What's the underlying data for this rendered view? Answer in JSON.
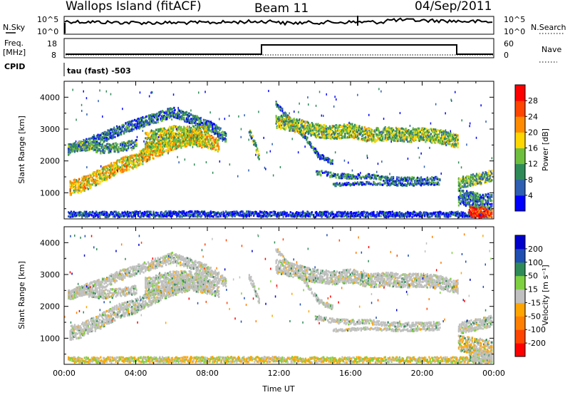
{
  "header": {
    "station": "Wallops Island (fitACF)",
    "beam": "Beam 11",
    "date": "04/Sep/2011"
  },
  "strip": {
    "nsky_label": "N.Sky",
    "nsky_tick_hi": "10^5",
    "nsky_tick_lo": "10^0",
    "nsearch_label": "N.Search",
    "freq_label": "Freq.",
    "freq_unit": "[MHz]",
    "freq_tick_hi": "18",
    "freq_tick_lo": "8",
    "nave_tick_hi": "60",
    "nave_tick_lo": "0",
    "nave_label": "Nave",
    "cpid_label": "CPID",
    "cpid_text": "tau (fast) -503"
  },
  "chart_data": [
    {
      "type": "heatmap",
      "panel": "power",
      "xlabel": "",
      "ylabel": "Slant Range [km]",
      "x_ticks": [
        "00:00",
        "04:00",
        "08:00",
        "12:00",
        "16:00",
        "20:00",
        "00:00"
      ],
      "y_ticks": [
        "1000",
        "2000",
        "3000",
        "4000"
      ],
      "xlim_hours": [
        0,
        24
      ],
      "ylim_km": [
        180,
        4500
      ],
      "colorbar": {
        "label": "Power [dB]",
        "ticks": [
          "4",
          "8",
          "12",
          "16",
          "20",
          "24",
          "28"
        ],
        "colors": [
          "#0000ff",
          "#2f5fb3",
          "#2e8b57",
          "#6fbf3f",
          "#ffd700",
          "#ff8c00",
          "#ff4500",
          "#ff0000"
        ]
      },
      "echo_bands": [
        {
          "name": "a",
          "points": [
            [
              0.3,
              1150
            ],
            [
              1,
              1260
            ],
            [
              2,
              1530
            ],
            [
              3,
              1840
            ],
            [
              4,
              2020
            ],
            [
              5,
              2320
            ],
            [
              6,
              2560
            ],
            [
              7,
              2720
            ],
            [
              8,
              2620
            ],
            [
              8.6,
              2520
            ]
          ],
          "width_km": 460,
          "level_db": 20
        },
        {
          "name": "b",
          "points": [
            [
              0.2,
              2350
            ],
            [
              1,
              2500
            ],
            [
              2,
              2700
            ],
            [
              3,
              2950
            ],
            [
              4,
              3150
            ],
            [
              5,
              3330
            ],
            [
              6,
              3530
            ],
            [
              7,
              3340
            ],
            [
              8,
              3130
            ],
            [
              9,
              2750
            ]
          ],
          "width_km": 320,
          "level_db": 10
        },
        {
          "name": "c",
          "points": [
            [
              0.2,
              2380
            ],
            [
              1,
              2470
            ],
            [
              2,
              2380
            ],
            [
              3,
              2420
            ],
            [
              4,
              2520
            ]
          ],
          "width_km": 280,
          "level_db": 12
        },
        {
          "name": "d",
          "points": [
            [
              4.5,
              2600
            ],
            [
              6,
              2800
            ],
            [
              8,
              2800
            ]
          ],
          "width_km": 600,
          "level_db": 18
        },
        {
          "name": "e",
          "points": [
            [
              10.3,
              2950
            ],
            [
              10.6,
              2550
            ],
            [
              10.9,
              2050
            ]
          ],
          "width_km": 220,
          "level_db": 14
        },
        {
          "name": "f",
          "points": [
            [
              11.8,
              3800
            ],
            [
              12.6,
              3250
            ],
            [
              13.5,
              2700
            ],
            [
              14.2,
              2150
            ],
            [
              15,
              1950
            ]
          ],
          "width_km": 160,
          "level_db": 10
        },
        {
          "name": "g",
          "points": [
            [
              11.8,
              3250
            ],
            [
              13,
              3100
            ],
            [
              14,
              2950
            ],
            [
              15,
              2900
            ],
            [
              16,
              2950
            ],
            [
              17,
              2800
            ],
            [
              18,
              2850
            ],
            [
              19,
              2800
            ],
            [
              20,
              2820
            ],
            [
              21,
              2750
            ],
            [
              22,
              2600
            ]
          ],
          "width_km": 430,
          "level_db": 16
        },
        {
          "name": "h",
          "points": [
            [
              14,
              1650
            ],
            [
              15,
              1550
            ],
            [
              16,
              1500
            ],
            [
              17,
              1520
            ],
            [
              18,
              1430
            ],
            [
              19,
              1420
            ],
            [
              20,
              1420
            ],
            [
              21,
              1450
            ]
          ],
          "width_km": 150,
          "level_db": 10
        },
        {
          "name": "i",
          "points": [
            [
              15,
              1250
            ],
            [
              17,
              1300
            ],
            [
              19,
              1250
            ],
            [
              21,
              1300
            ]
          ],
          "width_km": 90,
          "level_db": 8
        },
        {
          "name": "j",
          "points": [
            [
              0.2,
              320
            ],
            [
              3,
              320
            ],
            [
              6,
              330
            ],
            [
              9,
              330
            ],
            [
              12,
              330
            ],
            [
              15,
              320
            ],
            [
              18,
              320
            ],
            [
              21,
              320
            ],
            [
              23.9,
              320
            ]
          ],
          "width_km": 170,
          "level_db": 6
        },
        {
          "name": "k",
          "points": [
            [
              22,
              850
            ],
            [
              23,
              750
            ],
            [
              23.9,
              700
            ]
          ],
          "width_km": 500,
          "level_db": 10
        },
        {
          "name": "l",
          "points": [
            [
              22,
              1300
            ],
            [
              22.6,
              1380
            ],
            [
              23.3,
              1450
            ],
            [
              23.9,
              1550
            ]
          ],
          "width_km": 350,
          "level_db": 14
        },
        {
          "name": "m",
          "points": [
            [
              22.6,
              380
            ],
            [
              23.9,
              380
            ]
          ],
          "width_km": 320,
          "level_db": 30
        }
      ]
    },
    {
      "type": "heatmap",
      "panel": "velocity",
      "xlabel": "Time UT",
      "ylabel": "Slant Range [km]",
      "x_ticks": [
        "00:00",
        "04:00",
        "08:00",
        "12:00",
        "16:00",
        "20:00",
        "00:00"
      ],
      "y_ticks": [
        "1000",
        "2000",
        "3000",
        "4000"
      ],
      "xlim_hours": [
        0,
        24
      ],
      "ylim_km": [
        180,
        4500
      ],
      "colorbar": {
        "label": "Velocity [m s⁻¹]",
        "ticks": [
          "200",
          "100",
          "50",
          "15",
          "-15",
          "-50",
          "-100",
          "-200"
        ],
        "colors": [
          "#0000cc",
          "#1f4fb3",
          "#2e8b57",
          "#7fd040",
          "#c0c0c0",
          "#ffa500",
          "#ff7f00",
          "#ff4500",
          "#ff0000"
        ]
      },
      "dominant_velocity": "-15 to 15 (ground scatter, gray)"
    }
  ]
}
